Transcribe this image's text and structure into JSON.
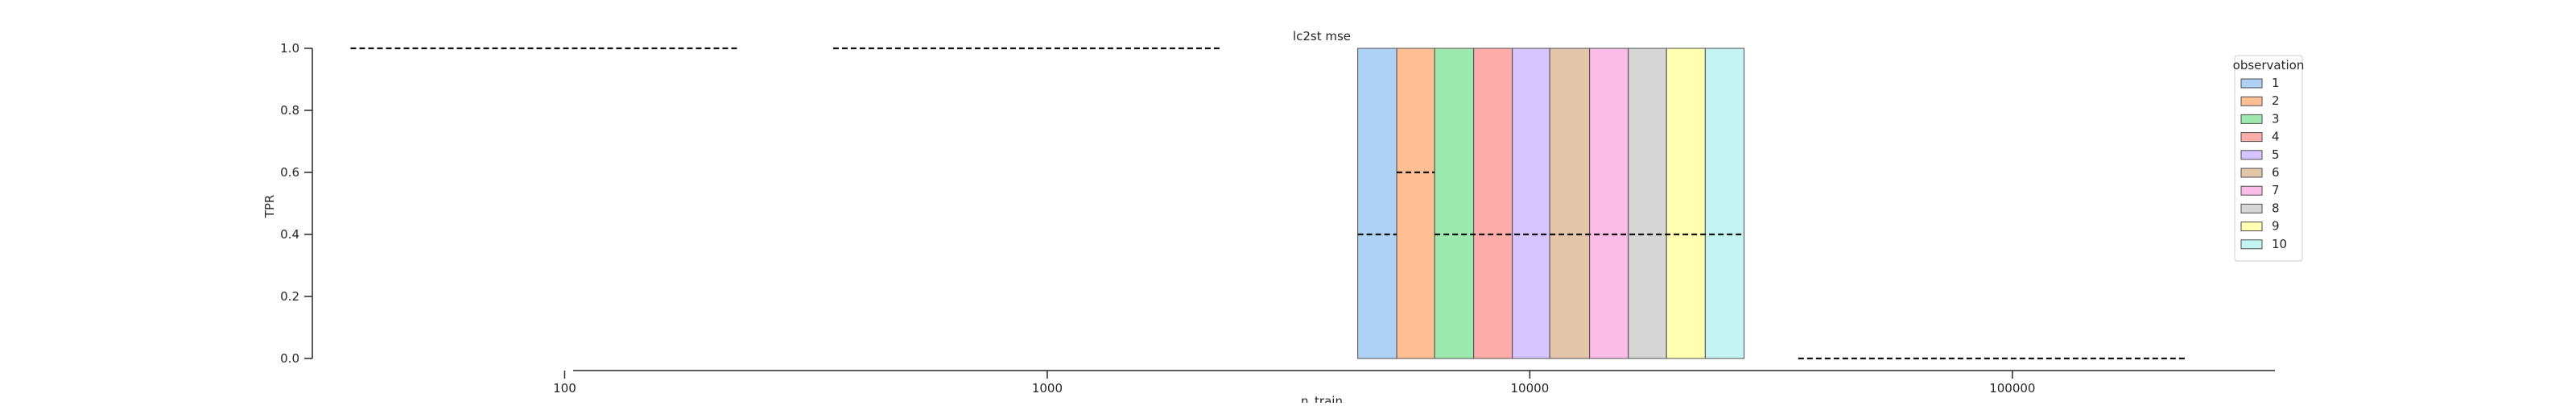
{
  "chart_data": {
    "type": "bar",
    "title": "lc2st mse",
    "xlabel": "n_train",
    "ylabel": "TPR",
    "x_scale": "log",
    "xlim": [
      30,
      350000
    ],
    "ylim": [
      0,
      1
    ],
    "x_ticks": [
      100,
      1000,
      10000,
      100000
    ],
    "x_tick_labels": [
      "100",
      "1000",
      "10000",
      "100000"
    ],
    "y_ticks": [
      0,
      0.2,
      0.4,
      0.6,
      0.8,
      1.0
    ],
    "y_tick_labels": [
      "0.0",
      "0.2",
      "0.4",
      "0.6",
      "0.8",
      "1.0"
    ],
    "grid": false,
    "legend": {
      "title": "observation",
      "position": "top-right",
      "entries": [
        {
          "label": "1",
          "color": "#a1c9f4"
        },
        {
          "label": "2",
          "color": "#ffb482"
        },
        {
          "label": "3",
          "color": "#8de5a1"
        },
        {
          "label": "4",
          "color": "#ff9f9b"
        },
        {
          "label": "5",
          "color": "#d0bbff"
        },
        {
          "label": "6",
          "color": "#debb9b"
        },
        {
          "label": "7",
          "color": "#fab0e4"
        },
        {
          "label": "8",
          "color": "#cfcfcf"
        },
        {
          "label": "9",
          "color": "#fffea3"
        },
        {
          "label": "10",
          "color": "#b9f2f0"
        }
      ]
    },
    "bars": [
      {
        "observation": "1",
        "x_start": 4400,
        "x_end": 5300,
        "tpr": 1.0
      },
      {
        "observation": "2",
        "x_start": 5300,
        "x_end": 6350,
        "tpr": 1.0
      },
      {
        "observation": "3",
        "x_start": 6350,
        "x_end": 7650,
        "tpr": 1.0
      },
      {
        "observation": "4",
        "x_start": 7650,
        "x_end": 9200,
        "tpr": 1.0
      },
      {
        "observation": "5",
        "x_start": 9200,
        "x_end": 11000,
        "tpr": 1.0
      },
      {
        "observation": "6",
        "x_start": 11000,
        "x_end": 13300,
        "tpr": 1.0
      },
      {
        "observation": "7",
        "x_start": 13300,
        "x_end": 16000,
        "tpr": 1.0
      },
      {
        "observation": "8",
        "x_start": 16000,
        "x_end": 19200,
        "tpr": 1.0
      },
      {
        "observation": "9",
        "x_start": 19200,
        "x_end": 23100,
        "tpr": 1.0
      },
      {
        "observation": "10",
        "x_start": 23100,
        "x_end": 27800,
        "tpr": 1.0
      }
    ],
    "dashed_lines": [
      {
        "x_start": 36,
        "x_end": 230,
        "y": 1.0
      },
      {
        "x_start": 360,
        "x_end": 2300,
        "y": 1.0
      },
      {
        "x_start": 4400,
        "x_end": 5300,
        "y": 0.4
      },
      {
        "x_start": 5300,
        "x_end": 6350,
        "y": 0.6
      },
      {
        "x_start": 6350,
        "x_end": 27800,
        "y": 0.4
      },
      {
        "x_start": 36000,
        "x_end": 230000,
        "y": 0.0
      }
    ]
  }
}
